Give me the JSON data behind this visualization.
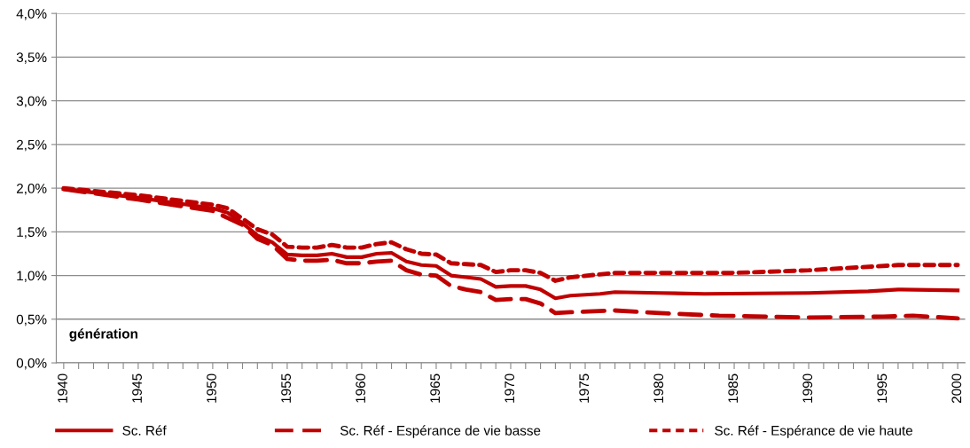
{
  "chart_data": {
    "type": "line",
    "annotations": [
      "génération"
    ],
    "ylim": [
      0,
      4
    ],
    "yticks": [
      {
        "value": 0,
        "label": "0,0%"
      },
      {
        "value": 0.5,
        "label": "0,5%"
      },
      {
        "value": 1,
        "label": "1,0%"
      },
      {
        "value": 1.5,
        "label": "1,5%"
      },
      {
        "value": 2,
        "label": "2,0%"
      },
      {
        "value": 2.5,
        "label": "2,5%"
      },
      {
        "value": 3,
        "label": "3,0%"
      },
      {
        "value": 3.5,
        "label": "3,5%"
      },
      {
        "value": 4,
        "label": "4,0%"
      }
    ],
    "xlim": [
      1939.5,
      2000.5
    ],
    "xticks": [
      1940,
      {
        "value": 1941,
        "label": null
      },
      {
        "value": 1942,
        "label": null
      },
      {
        "value": 1943,
        "label": null
      },
      {
        "value": 1944,
        "label": null
      },
      1945,
      {
        "value": 1946,
        "label": null
      },
      {
        "value": 1947,
        "label": null
      },
      {
        "value": 1948,
        "label": null
      },
      {
        "value": 1949,
        "label": null
      },
      1950,
      {
        "value": 1951,
        "label": null
      },
      {
        "value": 1952,
        "label": null
      },
      {
        "value": 1953,
        "label": null
      },
      {
        "value": 1954,
        "label": null
      },
      1955,
      {
        "value": 1956,
        "label": null
      },
      {
        "value": 1957,
        "label": null
      },
      {
        "value": 1958,
        "label": null
      },
      {
        "value": 1959,
        "label": null
      },
      1960,
      {
        "value": 1961,
        "label": null
      },
      {
        "value": 1962,
        "label": null
      },
      {
        "value": 1963,
        "label": null
      },
      {
        "value": 1964,
        "label": null
      },
      1965,
      {
        "value": 1966,
        "label": null
      },
      {
        "value": 1967,
        "label": null
      },
      {
        "value": 1968,
        "label": null
      },
      {
        "value": 1969,
        "label": null
      },
      1970,
      {
        "value": 1971,
        "label": null
      },
      {
        "value": 1972,
        "label": null
      },
      {
        "value": 1973,
        "label": null
      },
      {
        "value": 1974,
        "label": null
      },
      1975,
      {
        "value": 1976,
        "label": null
      },
      {
        "value": 1977,
        "label": null
      },
      {
        "value": 1978,
        "label": null
      },
      {
        "value": 1979,
        "label": null
      },
      1980,
      {
        "value": 1981,
        "label": null
      },
      {
        "value": 1982,
        "label": null
      },
      {
        "value": 1983,
        "label": null
      },
      {
        "value": 1984,
        "label": null
      },
      1985,
      {
        "value": 1986,
        "label": null
      },
      {
        "value": 1987,
        "label": null
      },
      {
        "value": 1988,
        "label": null
      },
      {
        "value": 1989,
        "label": null
      },
      1990,
      {
        "value": 1991,
        "label": null
      },
      {
        "value": 1992,
        "label": null
      },
      {
        "value": 1993,
        "label": null
      },
      {
        "value": 1994,
        "label": null
      },
      1995,
      {
        "value": 1996,
        "label": null
      },
      {
        "value": 1997,
        "label": null
      },
      {
        "value": 1998,
        "label": null
      },
      {
        "value": 1999,
        "label": null
      },
      2000
    ],
    "grid": "y",
    "legend": "bottom",
    "marker": "none",
    "series": [
      {
        "name": "Sc. Réf",
        "color": "#c00000",
        "line_style": "solid",
        "x": [
          1940,
          1945,
          1950,
          1951,
          1952,
          1953,
          1954,
          1955,
          1956,
          1957,
          1958,
          1959,
          1960,
          1961,
          1962,
          1963,
          1964,
          1965,
          1966,
          1967,
          1968,
          1969,
          1970,
          1971,
          1972,
          1973,
          1974,
          1975,
          1976,
          1977,
          1980,
          1983,
          1990,
          1994,
          1996,
          2000
        ],
        "values": [
          1.99,
          1.89,
          1.77,
          1.72,
          1.6,
          1.46,
          1.38,
          1.24,
          1.23,
          1.23,
          1.25,
          1.21,
          1.21,
          1.25,
          1.26,
          1.16,
          1.12,
          1.11,
          1.0,
          0.98,
          0.96,
          0.87,
          0.88,
          0.88,
          0.84,
          0.74,
          0.77,
          0.78,
          0.79,
          0.81,
          0.8,
          0.79,
          0.8,
          0.82,
          0.84,
          0.83
        ]
      },
      {
        "name": "Sc. Réf - Espérance de vie basse",
        "color": "#c00000",
        "line_style": "dashed",
        "x": [
          1940,
          1945,
          1950,
          1952,
          1953,
          1954,
          1955,
          1956,
          1957,
          1958,
          1959,
          1960,
          1961,
          1962,
          1963,
          1964,
          1965,
          1966,
          1967,
          1968,
          1969,
          1970,
          1971,
          1972,
          1973,
          1974,
          1977,
          1980,
          1984,
          1990,
          1995,
          1997,
          2000
        ],
        "values": [
          1.99,
          1.87,
          1.74,
          1.58,
          1.42,
          1.35,
          1.19,
          1.17,
          1.17,
          1.18,
          1.14,
          1.14,
          1.16,
          1.17,
          1.06,
          1.01,
          1.0,
          0.88,
          0.84,
          0.81,
          0.72,
          0.73,
          0.73,
          0.68,
          0.57,
          0.58,
          0.6,
          0.57,
          0.54,
          0.52,
          0.53,
          0.54,
          0.51
        ]
      },
      {
        "name": "Sc. Réf - Espérance de vie haute",
        "color": "#c00000",
        "line_style": "dotted",
        "x": [
          1940,
          1945,
          1950,
          1951,
          1952,
          1953,
          1954,
          1955,
          1956,
          1957,
          1958,
          1959,
          1960,
          1961,
          1962,
          1963,
          1964,
          1965,
          1966,
          1967,
          1968,
          1969,
          1970,
          1971,
          1972,
          1973,
          1974,
          1977,
          1985,
          1990,
          1996,
          2000
        ],
        "values": [
          2.0,
          1.92,
          1.81,
          1.77,
          1.65,
          1.53,
          1.47,
          1.33,
          1.32,
          1.32,
          1.35,
          1.32,
          1.32,
          1.36,
          1.38,
          1.3,
          1.25,
          1.24,
          1.14,
          1.13,
          1.12,
          1.04,
          1.06,
          1.06,
          1.03,
          0.94,
          0.98,
          1.03,
          1.03,
          1.06,
          1.12,
          1.12
        ]
      }
    ]
  }
}
